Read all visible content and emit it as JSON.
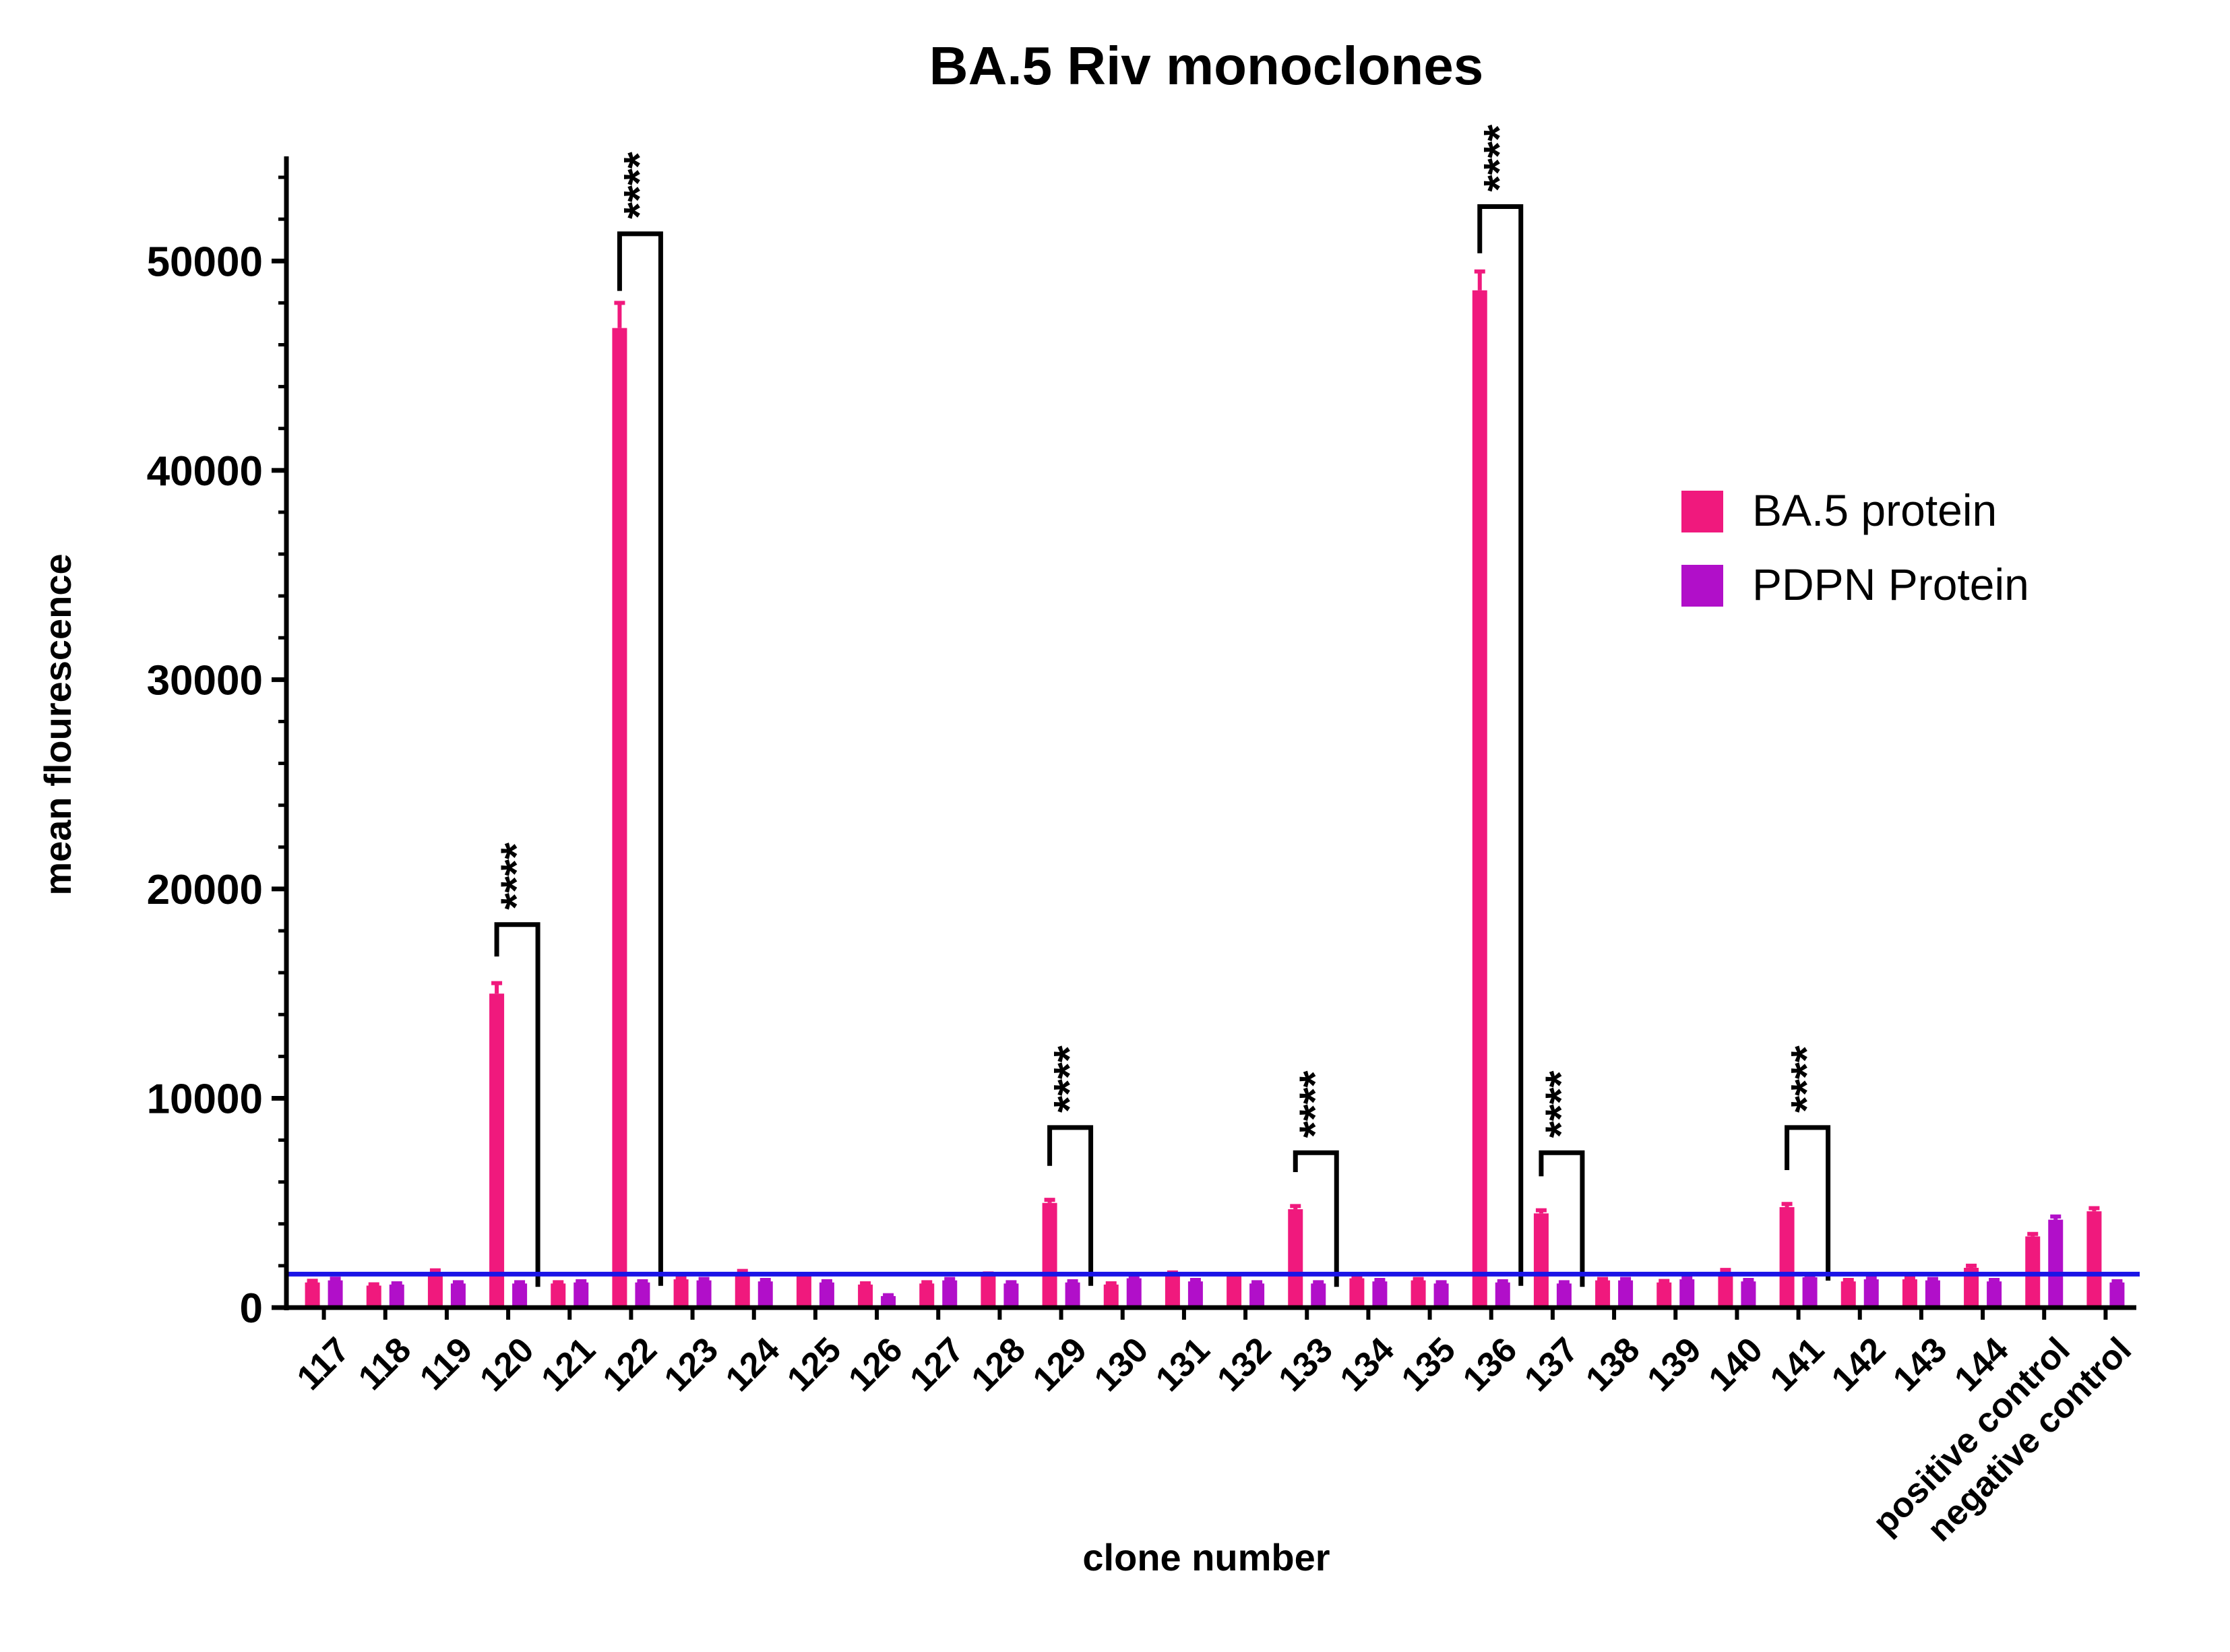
{
  "chart_data": {
    "type": "bar",
    "title": "BA.5 Riv monoclones",
    "xlabel": "clone number",
    "ylabel": "mean flourescence",
    "ylim": [
      0,
      55000
    ],
    "yticks": [
      0,
      10000,
      20000,
      30000,
      40000,
      50000
    ],
    "categories": [
      "117",
      "118",
      "119",
      "120",
      "121",
      "122",
      "123",
      "124",
      "125",
      "126",
      "127",
      "128",
      "129",
      "130",
      "131",
      "132",
      "133",
      "134",
      "135",
      "136",
      "137",
      "138",
      "139",
      "140",
      "141",
      "142",
      "143",
      "144",
      "positive control",
      "negative control"
    ],
    "series": [
      {
        "name": "BA.5 protein",
        "color": "#F0197D",
        "values": [
          1200,
          1050,
          1700,
          15000,
          1150,
          46800,
          1350,
          1650,
          1500,
          1100,
          1150,
          1550,
          5000,
          1100,
          1600,
          1500,
          4700,
          1400,
          1300,
          48600,
          4500,
          1300,
          1200,
          1700,
          4800,
          1250,
          1350,
          1900,
          3400,
          4600
        ],
        "errors": [
          80,
          60,
          80,
          500,
          60,
          1200,
          80,
          100,
          80,
          60,
          60,
          80,
          150,
          60,
          80,
          80,
          150,
          80,
          70,
          900,
          150,
          70,
          70,
          100,
          150,
          70,
          80,
          100,
          120,
          150
        ]
      },
      {
        "name": "PDPN Protein",
        "color": "#B10FC9",
        "values": [
          1300,
          1100,
          1150,
          1150,
          1200,
          1200,
          1300,
          1250,
          1200,
          550,
          1300,
          1150,
          1200,
          1400,
          1250,
          1150,
          1150,
          1250,
          1150,
          1200,
          1150,
          1300,
          1350,
          1250,
          1450,
          1350,
          1300,
          1250,
          4200,
          1200
        ],
        "errors": [
          80,
          60,
          60,
          60,
          60,
          60,
          70,
          70,
          60,
          40,
          70,
          60,
          60,
          70,
          70,
          60,
          60,
          70,
          60,
          60,
          60,
          70,
          70,
          70,
          80,
          70,
          70,
          70,
          150,
          60
        ]
      }
    ],
    "threshold_line": {
      "value": 1600,
      "color": "#1A14E6"
    },
    "significance": [
      {
        "category": "120",
        "top": 18300,
        "label": "****"
      },
      {
        "category": "122",
        "top": 51300,
        "label": "****"
      },
      {
        "category": "129",
        "top": 8600,
        "label": "****"
      },
      {
        "category": "133",
        "top": 7400,
        "label": "****"
      },
      {
        "category": "136",
        "top": 52600,
        "label": "****"
      },
      {
        "category": "137",
        "top": 7400,
        "label": "****"
      },
      {
        "category": "141",
        "top": 8600,
        "label": "****"
      }
    ],
    "legend": {
      "position": "right"
    },
    "grid": false
  }
}
